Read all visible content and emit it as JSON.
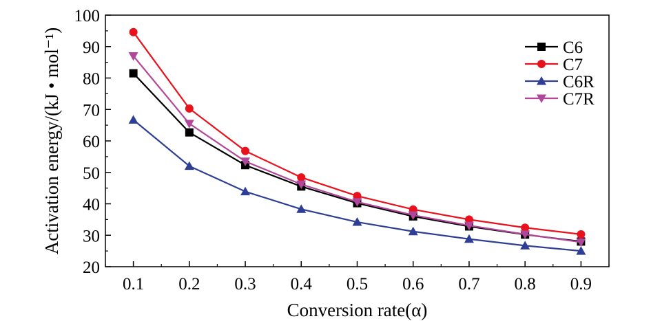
{
  "chart_data": {
    "type": "line",
    "xlabel": "Conversion rate(α)",
    "ylabel": "Activation energy/(kJ • mol⁻¹)",
    "x": [
      0.1,
      0.2,
      0.3,
      0.4,
      0.5,
      0.6,
      0.7,
      0.8,
      0.9
    ],
    "x_tick_labels": [
      "0.1",
      "0.2",
      "0.3",
      "0.4",
      "0.5",
      "0.6",
      "0.7",
      "0.8",
      "0.9"
    ],
    "xlim": [
      0.05,
      0.95
    ],
    "ylim": [
      20,
      100
    ],
    "y_ticks": [
      20,
      30,
      40,
      50,
      60,
      70,
      80,
      90,
      100
    ],
    "y_tick_labels": [
      "20",
      "30",
      "40",
      "50",
      "60",
      "70",
      "80",
      "90",
      "100"
    ],
    "grid": false,
    "legend_position": "top-right",
    "series": [
      {
        "name": "C6",
        "color": "#000000",
        "marker": "square",
        "values": [
          81.5,
          62.7,
          52.3,
          45.5,
          40.2,
          36.0,
          32.8,
          30.2,
          28.0
        ]
      },
      {
        "name": "C7",
        "color": "#e8111c",
        "marker": "circle",
        "values": [
          94.6,
          70.3,
          56.8,
          48.4,
          42.5,
          38.2,
          35.0,
          32.4,
          30.3
        ]
      },
      {
        "name": "C6R",
        "color": "#2d3e94",
        "marker": "triangle-up",
        "values": [
          66.7,
          52.0,
          43.9,
          38.3,
          34.2,
          31.2,
          28.8,
          26.7,
          25.0
        ]
      },
      {
        "name": "C7R",
        "color": "#b1479a",
        "marker": "triangle-down",
        "values": [
          87.0,
          65.5,
          53.5,
          46.2,
          40.6,
          36.4,
          33.1,
          30.3,
          27.8
        ]
      }
    ]
  }
}
